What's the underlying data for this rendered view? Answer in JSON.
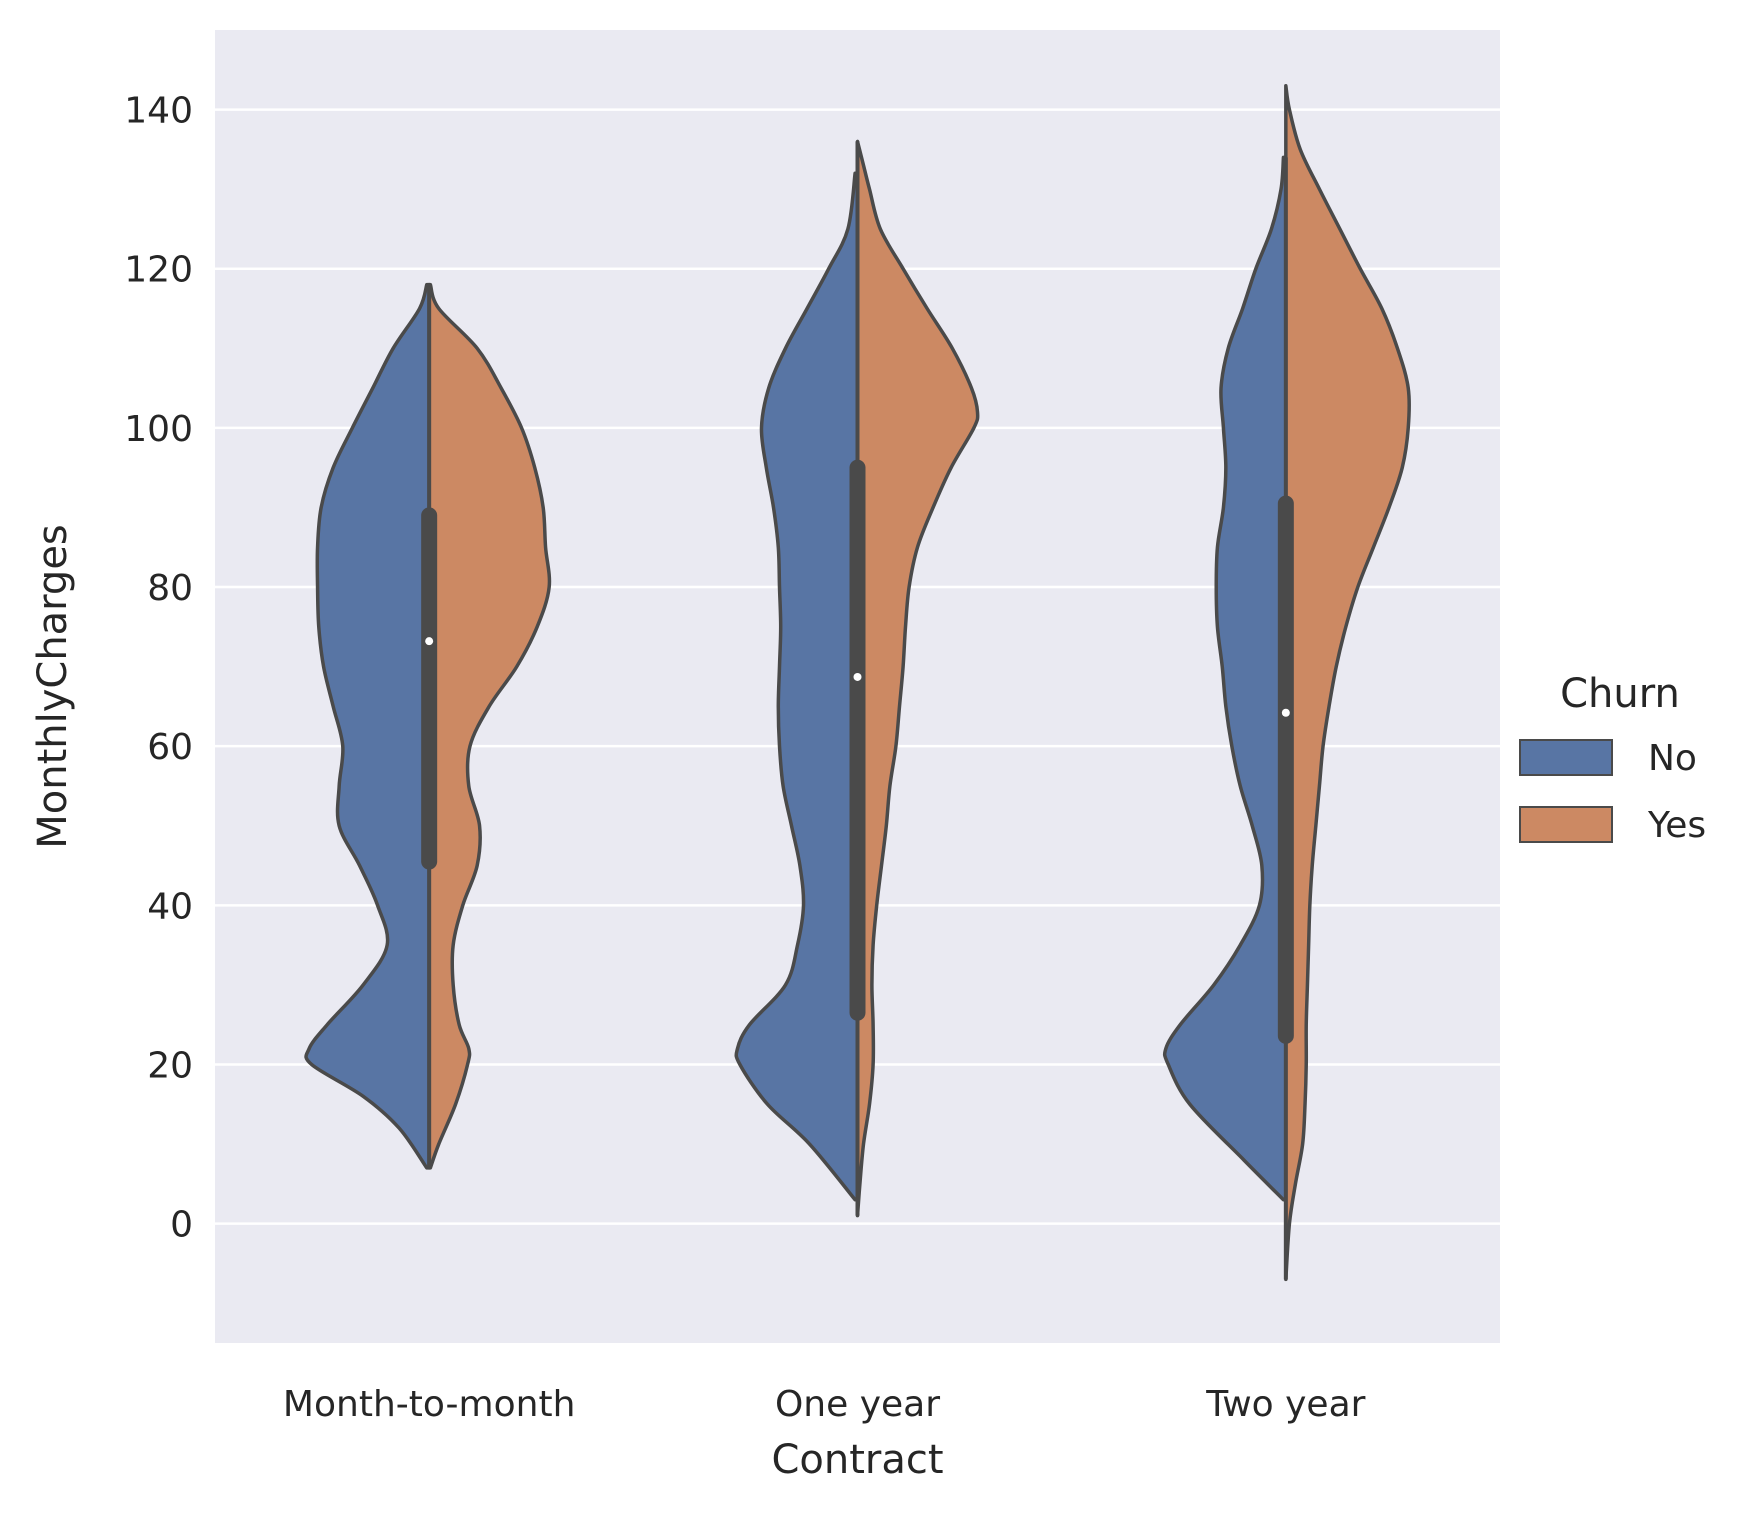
{
  "chart_data": {
    "type": "violin",
    "split": true,
    "xlabel": "Contract",
    "ylabel": "MonthlyCharges",
    "ylim": [
      -15,
      150
    ],
    "yticks": [
      0,
      20,
      40,
      60,
      80,
      100,
      120,
      140
    ],
    "categories": [
      "Month-to-month",
      "One year",
      "Two year"
    ],
    "grid": true,
    "legend": {
      "title": "Churn",
      "placement": "right",
      "entries": [
        "No",
        "Yes"
      ]
    },
    "colors": {
      "No": "#5875a4",
      "Yes": "#cc8963",
      "outline": "#4a4a4a",
      "background": "#eaeaf2",
      "grid": "#ffffff"
    },
    "series": [
      {
        "name": "No",
        "violins": [
          {
            "category": "Month-to-month",
            "min": 7,
            "max": 118,
            "density": [
              [
                7,
                0.02
              ],
              [
                12,
                0.25
              ],
              [
                16,
                0.55
              ],
              [
                20,
                0.98
              ],
              [
                22,
                1.0
              ],
              [
                25,
                0.85
              ],
              [
                30,
                0.55
              ],
              [
                35,
                0.35
              ],
              [
                40,
                0.43
              ],
              [
                45,
                0.58
              ],
              [
                50,
                0.75
              ],
              [
                55,
                0.75
              ],
              [
                60,
                0.72
              ],
              [
                65,
                0.8
              ],
              [
                70,
                0.88
              ],
              [
                75,
                0.92
              ],
              [
                80,
                0.93
              ],
              [
                85,
                0.93
              ],
              [
                90,
                0.9
              ],
              [
                95,
                0.8
              ],
              [
                100,
                0.64
              ],
              [
                105,
                0.47
              ],
              [
                110,
                0.3
              ],
              [
                115,
                0.08
              ],
              [
                118,
                0.02
              ]
            ]
          },
          {
            "category": "One year",
            "min": 3,
            "max": 132,
            "density": [
              [
                3,
                0.02
              ],
              [
                10,
                0.4
              ],
              [
                15,
                0.75
              ],
              [
                20,
                0.98
              ],
              [
                22,
                1.0
              ],
              [
                25,
                0.9
              ],
              [
                30,
                0.6
              ],
              [
                35,
                0.5
              ],
              [
                40,
                0.45
              ],
              [
                45,
                0.48
              ],
              [
                50,
                0.55
              ],
              [
                55,
                0.62
              ],
              [
                60,
                0.65
              ],
              [
                65,
                0.66
              ],
              [
                70,
                0.65
              ],
              [
                75,
                0.64
              ],
              [
                80,
                0.65
              ],
              [
                85,
                0.66
              ],
              [
                90,
                0.7
              ],
              [
                95,
                0.76
              ],
              [
                100,
                0.8
              ],
              [
                105,
                0.74
              ],
              [
                110,
                0.6
              ],
              [
                115,
                0.42
              ],
              [
                120,
                0.24
              ],
              [
                125,
                0.08
              ],
              [
                132,
                0.02
              ]
            ]
          },
          {
            "category": "Two year",
            "min": 3,
            "max": 134,
            "density": [
              [
                3,
                0.02
              ],
              [
                8,
                0.35
              ],
              [
                15,
                0.8
              ],
              [
                20,
                0.98
              ],
              [
                22,
                1.0
              ],
              [
                25,
                0.88
              ],
              [
                30,
                0.6
              ],
              [
                35,
                0.38
              ],
              [
                40,
                0.22
              ],
              [
                45,
                0.2
              ],
              [
                50,
                0.28
              ],
              [
                55,
                0.38
              ],
              [
                60,
                0.45
              ],
              [
                65,
                0.5
              ],
              [
                70,
                0.53
              ],
              [
                75,
                0.57
              ],
              [
                80,
                0.58
              ],
              [
                85,
                0.57
              ],
              [
                90,
                0.52
              ],
              [
                95,
                0.5
              ],
              [
                100,
                0.52
              ],
              [
                105,
                0.54
              ],
              [
                110,
                0.48
              ],
              [
                115,
                0.36
              ],
              [
                120,
                0.25
              ],
              [
                125,
                0.12
              ],
              [
                130,
                0.04
              ],
              [
                134,
                0.02
              ]
            ]
          }
        ]
      },
      {
        "name": "Yes",
        "violins": [
          {
            "category": "Month-to-month",
            "min": 7,
            "max": 118,
            "density": [
              [
                7,
                0.01
              ],
              [
                10,
                0.08
              ],
              [
                15,
                0.22
              ],
              [
                20,
                0.32
              ],
              [
                22,
                0.33
              ],
              [
                25,
                0.25
              ],
              [
                30,
                0.2
              ],
              [
                35,
                0.2
              ],
              [
                40,
                0.28
              ],
              [
                45,
                0.4
              ],
              [
                50,
                0.42
              ],
              [
                55,
                0.33
              ],
              [
                60,
                0.34
              ],
              [
                65,
                0.5
              ],
              [
                70,
                0.73
              ],
              [
                75,
                0.9
              ],
              [
                80,
                1.0
              ],
              [
                85,
                0.97
              ],
              [
                90,
                0.95
              ],
              [
                95,
                0.88
              ],
              [
                100,
                0.77
              ],
              [
                105,
                0.6
              ],
              [
                110,
                0.4
              ],
              [
                115,
                0.08
              ],
              [
                118,
                0.01
              ]
            ]
          },
          {
            "category": "One year",
            "min": 1,
            "max": 136,
            "density": [
              [
                1,
                0.0
              ],
              [
                5,
                0.02
              ],
              [
                10,
                0.05
              ],
              [
                15,
                0.1
              ],
              [
                20,
                0.13
              ],
              [
                25,
                0.13
              ],
              [
                30,
                0.12
              ],
              [
                35,
                0.13
              ],
              [
                40,
                0.16
              ],
              [
                45,
                0.2
              ],
              [
                50,
                0.24
              ],
              [
                55,
                0.27
              ],
              [
                60,
                0.32
              ],
              [
                65,
                0.35
              ],
              [
                70,
                0.38
              ],
              [
                75,
                0.4
              ],
              [
                80,
                0.43
              ],
              [
                85,
                0.5
              ],
              [
                90,
                0.63
              ],
              [
                95,
                0.78
              ],
              [
                100,
                0.97
              ],
              [
                102,
                1.0
              ],
              [
                105,
                0.95
              ],
              [
                110,
                0.79
              ],
              [
                115,
                0.58
              ],
              [
                120,
                0.38
              ],
              [
                125,
                0.19
              ],
              [
                130,
                0.1
              ],
              [
                133,
                0.05
              ],
              [
                136,
                0.0
              ]
            ]
          },
          {
            "category": "Two year",
            "min": -7,
            "max": 143,
            "density": [
              [
                -7,
                0.0
              ],
              [
                0,
                0.03
              ],
              [
                5,
                0.08
              ],
              [
                10,
                0.14
              ],
              [
                15,
                0.16
              ],
              [
                20,
                0.17
              ],
              [
                25,
                0.17
              ],
              [
                30,
                0.18
              ],
              [
                35,
                0.19
              ],
              [
                40,
                0.2
              ],
              [
                45,
                0.22
              ],
              [
                50,
                0.25
              ],
              [
                55,
                0.28
              ],
              [
                60,
                0.31
              ],
              [
                65,
                0.36
              ],
              [
                70,
                0.42
              ],
              [
                75,
                0.5
              ],
              [
                80,
                0.6
              ],
              [
                85,
                0.73
              ],
              [
                90,
                0.86
              ],
              [
                95,
                0.97
              ],
              [
                100,
                1.02
              ],
              [
                105,
                1.02
              ],
              [
                110,
                0.93
              ],
              [
                115,
                0.8
              ],
              [
                120,
                0.62
              ],
              [
                125,
                0.45
              ],
              [
                130,
                0.28
              ],
              [
                135,
                0.12
              ],
              [
                140,
                0.03
              ],
              [
                143,
                0.0
              ]
            ]
          }
        ]
      }
    ],
    "boxes": [
      {
        "category": "Month-to-month",
        "q1": 45.5,
        "median": 73.2,
        "q3": 89,
        "whisker_low": 7,
        "whisker_high": 118
      },
      {
        "category": "One year",
        "q1": 26.5,
        "median": 68.7,
        "q3": 95,
        "whisker_low": 1,
        "whisker_high": 136
      },
      {
        "category": "Two year",
        "q1": 23.6,
        "median": 64.2,
        "q3": 90.5,
        "whisker_low": -7,
        "whisker_high": 134
      }
    ]
  }
}
